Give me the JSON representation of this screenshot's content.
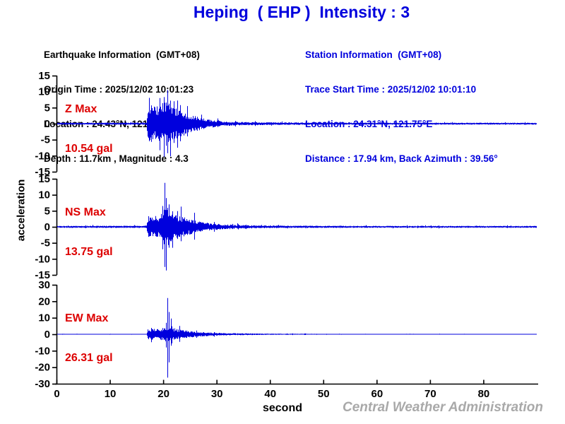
{
  "title": "Heping  ( EHP )  Intensity : 3",
  "colors": {
    "title_blue": "#0000dd",
    "station_blue": "#0000dd",
    "trace_blue": "#0000dd",
    "label_red": "#dd0000",
    "axis_black": "#000000",
    "watermark_gray": "#a9a9a9"
  },
  "earthquake_info": {
    "lines": [
      "Earthquake Information  (GMT+08)",
      "Origin Time : 2025/12/02 10:01:23",
      "Location : 24.43°N, 121.86°E",
      "Depth : 11.7km , Magnitude : 4.3"
    ]
  },
  "station_info": {
    "lines": [
      "Station Information  (GMT+08)",
      "Trace Start Time : 2025/12/02 10:01:10",
      "Location : 24.31°N, 121.75°E",
      "Distance : 17.94 km, Back Azimuth : 39.56°"
    ]
  },
  "watermark": "Central Weather Administration",
  "chart_data": {
    "type": "line",
    "xlabel": "second",
    "ylabel": "acceleration",
    "xlim": [
      0,
      90
    ],
    "xticks": [
      0,
      10,
      20,
      30,
      40,
      50,
      60,
      70,
      80
    ],
    "units": "gal",
    "event_onset_s": 17,
    "panels": [
      {
        "name": "Z",
        "label": "Z Max",
        "max_label": "10.54 gal",
        "max_gal": 10.54,
        "peak_s": 20.8,
        "ylim": [
          -15,
          15
        ],
        "yticks": [
          15,
          10,
          5,
          0,
          -5,
          -10,
          -15
        ],
        "envelope": [
          [
            0,
            0.3
          ],
          [
            16.8,
            0.32
          ],
          [
            17.1,
            5.5
          ],
          [
            17.6,
            6.2
          ],
          [
            18.4,
            5.2
          ],
          [
            19.2,
            6.0
          ],
          [
            20.0,
            6.5
          ],
          [
            20.8,
            7.2
          ],
          [
            21.6,
            6.0
          ],
          [
            22.5,
            5.0
          ],
          [
            23.5,
            4.0
          ],
          [
            24.5,
            3.3
          ],
          [
            25.5,
            2.8
          ],
          [
            26.5,
            2.2
          ],
          [
            28.0,
            1.6
          ],
          [
            29.5,
            1.1
          ],
          [
            31.0,
            0.8
          ],
          [
            34.0,
            0.55
          ],
          [
            40.0,
            0.42
          ],
          [
            50.0,
            0.35
          ],
          [
            65.0,
            0.3
          ],
          [
            90.0,
            0.3
          ]
        ],
        "spikes": [
          [
            19.35,
            8.0,
            8.3
          ],
          [
            20.15,
            8.3,
            10.35
          ],
          [
            20.8,
            10.54,
            9.2
          ],
          [
            21.25,
            7.2,
            10.2
          ],
          [
            22.0,
            7.0,
            6.0
          ],
          [
            23.2,
            5.8,
            5.5
          ]
        ]
      },
      {
        "name": "NS",
        "label": "NS Max",
        "max_label": "13.75 gal",
        "max_gal": 13.75,
        "peak_s": 20.3,
        "ylim": [
          -15,
          15
        ],
        "yticks": [
          15,
          10,
          5,
          0,
          -5,
          -10,
          -15
        ],
        "envelope": [
          [
            0,
            0.32
          ],
          [
            16.8,
            0.35
          ],
          [
            17.1,
            3.4
          ],
          [
            18.0,
            3.1
          ],
          [
            19.0,
            3.6
          ],
          [
            19.7,
            4.2
          ],
          [
            20.1,
            6.0
          ],
          [
            20.5,
            8.0
          ],
          [
            20.9,
            6.0
          ],
          [
            21.4,
            4.6
          ],
          [
            22.3,
            3.8
          ],
          [
            23.5,
            3.2
          ],
          [
            24.5,
            2.6
          ],
          [
            26.0,
            2.0
          ],
          [
            27.5,
            1.5
          ],
          [
            29.0,
            1.1
          ],
          [
            31.0,
            0.8
          ],
          [
            34.0,
            0.6
          ],
          [
            38.0,
            0.45
          ],
          [
            45.0,
            0.35
          ],
          [
            60.0,
            0.3
          ],
          [
            90.0,
            0.3
          ]
        ],
        "spikes": [
          [
            19.9,
            6.5,
            7.0
          ],
          [
            20.3,
            13.75,
            12.5
          ],
          [
            20.55,
            9.0,
            13.6
          ],
          [
            21.1,
            7.0,
            6.5
          ],
          [
            23.3,
            6.3,
            4.5
          ],
          [
            25.8,
            4.4,
            4.0
          ]
        ]
      },
      {
        "name": "EW",
        "label": "EW Max",
        "max_label": "26.31 gal",
        "max_gal": 26.31,
        "peak_s": 20.8,
        "ylim": [
          -30,
          30
        ],
        "yticks": [
          30,
          20,
          10,
          0,
          -10,
          -20,
          -30
        ],
        "envelope": [
          [
            0,
            0.15
          ],
          [
            16.8,
            0.17
          ],
          [
            17.1,
            3.3
          ],
          [
            17.8,
            3.6
          ],
          [
            18.6,
            3.0
          ],
          [
            19.5,
            3.4
          ],
          [
            20.3,
            4.2
          ],
          [
            20.9,
            5.0
          ],
          [
            21.5,
            4.2
          ],
          [
            22.3,
            3.4
          ],
          [
            23.5,
            2.6
          ],
          [
            25.0,
            2.0
          ],
          [
            26.5,
            1.5
          ],
          [
            28.0,
            1.2
          ],
          [
            30.0,
            0.9
          ],
          [
            32.5,
            0.7
          ],
          [
            36.0,
            0.5
          ],
          [
            40.0,
            0.4
          ],
          [
            45.0,
            0.3
          ],
          [
            50.0,
            0.22
          ],
          [
            55.0,
            0.17
          ],
          [
            90.0,
            0.14
          ]
        ],
        "spikes": [
          [
            20.5,
            7.0,
            8.0
          ],
          [
            20.75,
            22.0,
            26.31
          ],
          [
            21.05,
            13.5,
            17.0
          ],
          [
            21.45,
            9.5,
            7.0
          ],
          [
            23.0,
            5.0,
            4.6
          ]
        ]
      }
    ]
  }
}
